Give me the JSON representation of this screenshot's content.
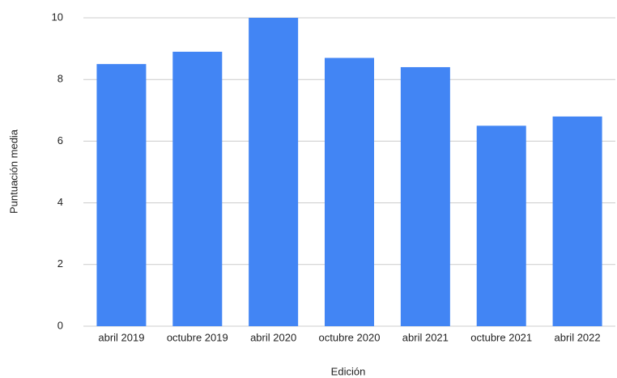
{
  "chart_data": {
    "type": "bar",
    "x_label": "Edición",
    "y_label": "Puntuación media",
    "categories": [
      "abril 2019",
      "octubre 2019",
      "abril 2020",
      "octubre 2020",
      "abril 2021",
      "octubre 2021",
      "abril 2022"
    ],
    "values": [
      8.5,
      8.9,
      10,
      8.7,
      8.4,
      6.5,
      6.8
    ],
    "color": "#4285f4",
    "ylim": [
      0,
      10
    ],
    "yticks": [
      0,
      2,
      4,
      6,
      8,
      10
    ],
    "grid": true
  }
}
